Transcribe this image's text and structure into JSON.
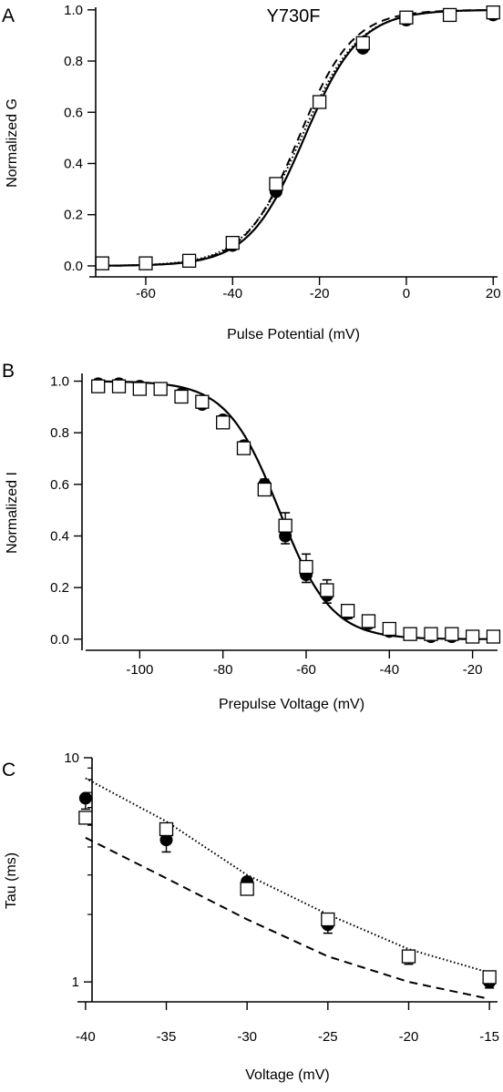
{
  "chart_data": [
    {
      "type": "scatter",
      "panel_label": "A",
      "title": "Y730F",
      "xlabel": "Pulse Potential (mV)",
      "ylabel": "Normalized G",
      "xlim": [
        -73,
        21
      ],
      "ylim": [
        -0.05,
        1.01
      ],
      "xticks": [
        -60,
        -40,
        -20,
        0,
        20
      ],
      "yticks": [
        0.0,
        0.2,
        0.4,
        0.6,
        0.8,
        1.0
      ],
      "yticks_text": [
        "0.0",
        "0.2",
        "0.4",
        "0.6",
        "0.8",
        "1.0"
      ],
      "grid": false,
      "series": [
        {
          "marker": "filled-circle",
          "x": [
            -70,
            -60,
            -50,
            -40,
            -30,
            -20,
            -10,
            0,
            10,
            20
          ],
          "y": [
            0.01,
            0.01,
            0.02,
            0.08,
            0.29,
            0.64,
            0.85,
            0.96,
            0.98,
            0.98
          ]
        },
        {
          "marker": "open-square",
          "x": [
            -70,
            -60,
            -50,
            -40,
            -30,
            -20,
            -10,
            0,
            10,
            20
          ],
          "y": [
            0.01,
            0.01,
            0.02,
            0.09,
            0.32,
            0.64,
            0.87,
            0.97,
            0.98,
            0.99
          ]
        }
      ],
      "fits": [
        {
          "style": "solid",
          "function": "boltzmann_activation",
          "v_half": -23.5,
          "slope": 6.4
        },
        {
          "style": "dotted",
          "function": "boltzmann_activation",
          "v_half": -24.2,
          "slope": 6.6
        },
        {
          "style": "dashed",
          "function": "boltzmann_activation",
          "v_half": -24.8,
          "slope": 6.2
        }
      ]
    },
    {
      "type": "scatter",
      "panel_label": "B",
      "title": "",
      "xlabel": "Prepulse Voltage (mV)",
      "ylabel": "Normalized I",
      "xlim": [
        -113,
        -14
      ],
      "ylim": [
        -0.05,
        1.03
      ],
      "xticks": [
        -100,
        -80,
        -60,
        -40,
        -20
      ],
      "yticks": [
        0.0,
        0.2,
        0.4,
        0.6,
        0.8,
        1.0
      ],
      "yticks_text": [
        "0.0",
        "0.2",
        "0.4",
        "0.6",
        "0.8",
        "1.0"
      ],
      "grid": false,
      "series": [
        {
          "marker": "filled-circle",
          "x": [
            -110,
            -105,
            -100,
            -95,
            -90,
            -85,
            -80,
            -75,
            -70,
            -65,
            -60,
            -55,
            -50,
            -45,
            -40,
            -35,
            -30,
            -25,
            -20,
            -15
          ],
          "y": [
            0.99,
            0.99,
            0.98,
            0.97,
            0.95,
            0.91,
            0.85,
            0.75,
            0.6,
            0.4,
            0.25,
            0.17,
            0.1,
            0.06,
            0.03,
            0.02,
            0.01,
            0.01,
            0.01,
            0.01
          ],
          "err": [
            0.01,
            0.01,
            0.01,
            0.01,
            0.01,
            0.01,
            0.02,
            0.02,
            0.03,
            0.03,
            0.03,
            0.03,
            0.02,
            0.01,
            0.01,
            0.01,
            0.01,
            0.01,
            0.01,
            0.01
          ]
        },
        {
          "marker": "open-square",
          "x": [
            -110,
            -105,
            -100,
            -95,
            -90,
            -85,
            -80,
            -75,
            -70,
            -65,
            -60,
            -55,
            -50,
            -45,
            -40,
            -35,
            -30,
            -25,
            -20,
            -15
          ],
          "y": [
            0.98,
            0.98,
            0.97,
            0.97,
            0.94,
            0.92,
            0.84,
            0.74,
            0.58,
            0.44,
            0.28,
            0.19,
            0.11,
            0.07,
            0.04,
            0.02,
            0.02,
            0.02,
            0.01,
            0.01
          ],
          "err": [
            0.01,
            0.01,
            0.01,
            0.01,
            0.01,
            0.01,
            0.02,
            0.02,
            0.04,
            0.05,
            0.05,
            0.04,
            0.02,
            0.01,
            0.01,
            0.01,
            0.01,
            0.01,
            0.01,
            0.01
          ]
        }
      ],
      "fits": [
        {
          "style": "solid",
          "function": "boltzmann_inactivation",
          "v_half": -66.5,
          "slope": 6.3
        }
      ]
    },
    {
      "type": "scatter",
      "panel_label": "C",
      "title": "",
      "xlabel": "Voltage (mV)",
      "ylabel": "Tau (ms)",
      "xlim": [
        -40.5,
        -14.5
      ],
      "ylim": [
        0.8,
        10
      ],
      "log_y": true,
      "xticks": [
        -40,
        -35,
        -30,
        -25,
        -20,
        -15
      ],
      "yticks": [
        1,
        10
      ],
      "yticks_text": [
        "1",
        "10"
      ],
      "grid": false,
      "series": [
        {
          "marker": "filled-circle",
          "x": [
            -40,
            -35,
            -30,
            -25,
            -20,
            -15
          ],
          "y": [
            6.6,
            4.3,
            2.8,
            1.8,
            1.3,
            1.0
          ],
          "err": [
            0.7,
            0.5,
            0.35,
            0.15,
            0.1,
            0.06
          ]
        },
        {
          "marker": "open-square",
          "x": [
            -40,
            -35,
            -30,
            -25,
            -20,
            -15
          ],
          "y": [
            5.4,
            4.8,
            2.6,
            1.9,
            1.3,
            1.05
          ],
          "err": [
            0.3,
            0.3,
            0.25,
            0.1,
            0.08,
            0.05
          ]
        }
      ],
      "fits": [
        {
          "style": "dotted",
          "x": [
            -40,
            -35,
            -30,
            -25,
            -20,
            -15
          ],
          "y": [
            8.1,
            5.2,
            3.0,
            2.0,
            1.4,
            1.1
          ]
        },
        {
          "style": "dashed",
          "x": [
            -40,
            -35,
            -30,
            -25,
            -20,
            -15
          ],
          "y": [
            4.4,
            2.9,
            1.9,
            1.3,
            1.0,
            0.84
          ]
        }
      ]
    }
  ]
}
